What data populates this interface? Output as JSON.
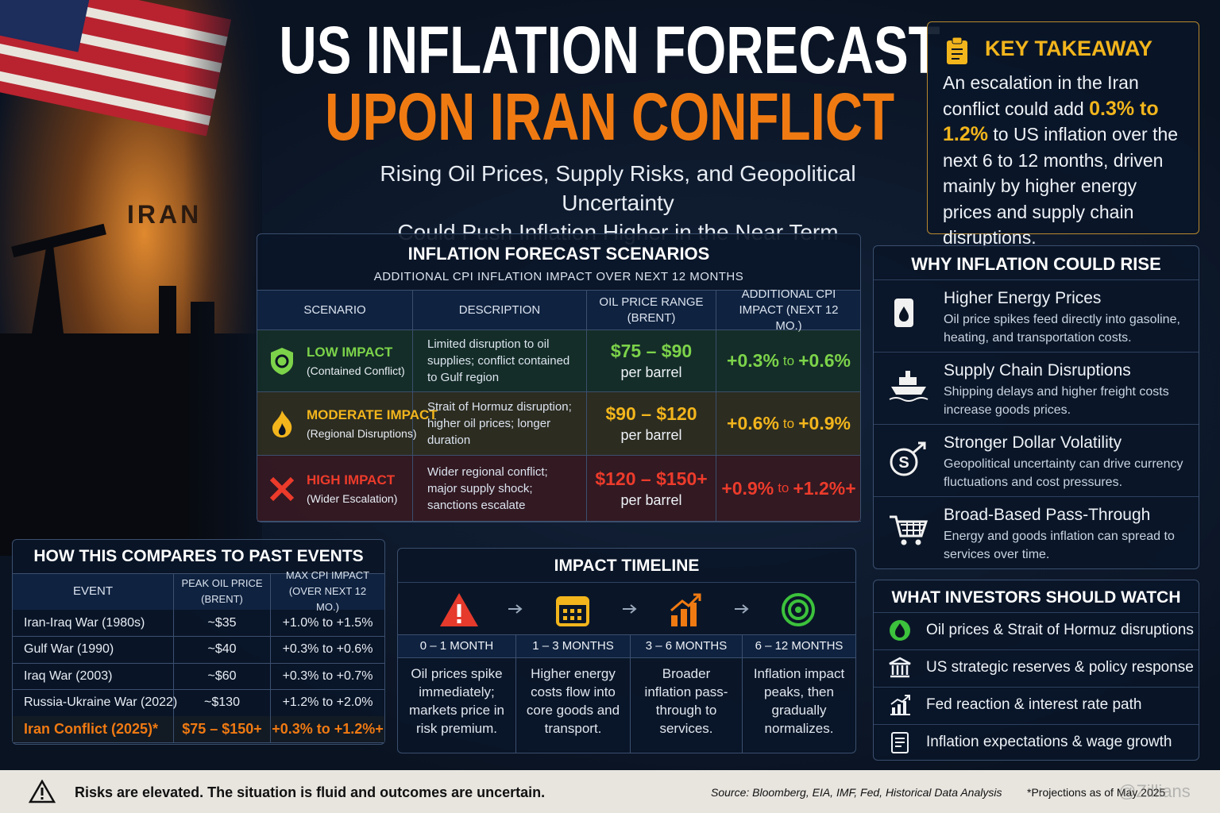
{
  "header": {
    "title_line1": "US INFLATION FORECAST",
    "title_line2": "UPON IRAN CONFLICT",
    "subtitle_line1": "Rising Oil Prices, Supply Risks, and Geopolitical Uncertainty",
    "subtitle_line2": "Could Push Inflation Higher in the Near Term"
  },
  "background_label": "IRAN",
  "key_takeaway": {
    "title": "KEY TAKEAWAY",
    "text_before": "An escalation in the Iran conflict could add",
    "highlight": "0.3% to 1.2%",
    "text_after": "to US inflation over the next 6 to 12 months, driven mainly by higher energy prices and supply chain disruptions."
  },
  "scenarios": {
    "title": "INFLATION FORECAST SCENARIOS",
    "subtitle": "ADDITIONAL CPI INFLATION IMPACT OVER NEXT 12 MONTHS",
    "columns": [
      "SCENARIO",
      "DESCRIPTION",
      "OIL PRICE RANGE (BRENT)",
      "ADDITIONAL CPI IMPACT (NEXT 12 MO.)"
    ],
    "rows": [
      {
        "impact": "LOW IMPACT",
        "qualifier": "(Contained Conflict)",
        "description": "Limited disruption to oil supplies; conflict contained to Gulf region",
        "price": "$75 – $90",
        "price_unit": "per barrel",
        "cpi_from": "+0.3%",
        "cpi_word": "to",
        "cpi_to": "+0.6%"
      },
      {
        "impact": "MODERATE IMPACT",
        "qualifier": "(Regional Disruptions)",
        "description": "Strait of Hormuz disruption; higher oil prices; longer duration",
        "price": "$90 – $120",
        "price_unit": "per barrel",
        "cpi_from": "+0.6%",
        "cpi_word": "to",
        "cpi_to": "+0.9%"
      },
      {
        "impact": "HIGH IMPACT",
        "qualifier": "(Wider Escalation)",
        "description": "Wider regional conflict; major supply shock; sanctions escalate",
        "price": "$120 – $150+",
        "price_unit": "per barrel",
        "cpi_from": "+0.9%",
        "cpi_word": "to",
        "cpi_to": "+1.2%+"
      }
    ]
  },
  "why_rise": {
    "title": "WHY INFLATION COULD RISE",
    "items": [
      {
        "title": "Higher Energy Prices",
        "text": "Oil price spikes feed directly into gasoline, heating, and transportation costs."
      },
      {
        "title": "Supply Chain Disruptions",
        "text": "Shipping delays and higher freight costs increase goods prices."
      },
      {
        "title": "Stronger Dollar Volatility",
        "text": "Geopolitical uncertainty can drive currency fluctuations and cost pressures."
      },
      {
        "title": "Broad-Based Pass-Through",
        "text": "Energy and goods inflation can spread to services over time."
      }
    ]
  },
  "past_events": {
    "title": "HOW THIS COMPARES TO PAST EVENTS",
    "columns": [
      "EVENT",
      "PEAK OIL PRICE (BRENT)",
      "MAX CPI IMPACT (OVER NEXT 12 MO.)"
    ],
    "rows": [
      [
        "Iran-Iraq War (1980s)",
        "~$35",
        "+1.0% to +1.5%"
      ],
      [
        "Gulf War (1990)",
        "~$40",
        "+0.3% to +0.6%"
      ],
      [
        "Iraq War (2003)",
        "~$60",
        "+0.3% to +0.7%"
      ],
      [
        "Russia-Ukraine War (2022)",
        "~$130",
        "+1.2% to +2.0%"
      ],
      [
        "Iran Conflict (2025)*",
        "$75 – $150+",
        "+0.3% to +1.2%+"
      ]
    ]
  },
  "timeline": {
    "title": "IMPACT TIMELINE",
    "steps": [
      {
        "period": "0 – 1 MONTH",
        "text": "Oil prices spike immediately; markets price in risk premium."
      },
      {
        "period": "1 – 3 MONTHS",
        "text": "Higher energy costs flow into core goods and transport."
      },
      {
        "period": "3 – 6 MONTHS",
        "text": "Broader inflation pass-through to services."
      },
      {
        "period": "6 – 12 MONTHS",
        "text": "Inflation impact peaks, then gradually normalizes."
      }
    ]
  },
  "investors": {
    "title": "WHAT INVESTORS SHOULD WATCH",
    "items": [
      "Oil prices & Strait of Hormuz disruptions",
      "US strategic reserves & policy response",
      "Fed reaction & interest rate path",
      "Inflation expectations & wage growth"
    ]
  },
  "footer": {
    "warning": "Risks are elevated. The situation is fluid and outcomes are uncertain.",
    "source": "Source: Bloomberg, EIA, IMF, Fed, Historical Data Analysis",
    "note": "*Projections as of May 2025",
    "watermark": "@Zillians"
  }
}
